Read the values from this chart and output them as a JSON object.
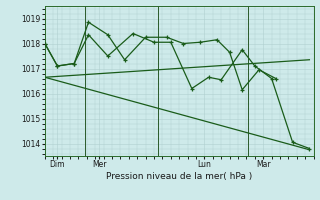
{
  "background_color": "#ceeaea",
  "grid_color": "#b0d0d0",
  "line_color": "#1a5c1a",
  "title": "Pression niveau de la mer( hPa )",
  "ylim": [
    1013.5,
    1019.5
  ],
  "yticks": [
    1014,
    1015,
    1016,
    1017,
    1018,
    1019
  ],
  "xlim": [
    0,
    32
  ],
  "day_labels": [
    "Dim",
    "Mer",
    "Lun",
    "Mar"
  ],
  "day_positions": [
    1.5,
    6.5,
    19.0,
    26.0
  ],
  "vline_positions": [
    4.8,
    13.5,
    24.2
  ],
  "series1_x": [
    0.0,
    1.5,
    3.5,
    5.2,
    7.5,
    9.5,
    12.0,
    14.5,
    16.5,
    18.5,
    20.5,
    22.0,
    23.5,
    25.5,
    27.5
  ],
  "series1_y": [
    1018.0,
    1017.1,
    1017.2,
    1018.85,
    1018.35,
    1017.35,
    1018.25,
    1018.25,
    1018.0,
    1018.05,
    1018.15,
    1017.65,
    1016.15,
    1016.95,
    1016.6
  ],
  "series1_marker": true,
  "series2_x": [
    0.0,
    1.5,
    3.5,
    5.2,
    7.5,
    10.5,
    13.0,
    15.0,
    17.5,
    19.5,
    21.0,
    23.5,
    25.0,
    27.0,
    29.5,
    31.5
  ],
  "series2_y": [
    1018.0,
    1017.1,
    1017.2,
    1018.35,
    1017.5,
    1018.4,
    1018.05,
    1018.05,
    1016.2,
    1016.65,
    1016.55,
    1017.75,
    1017.1,
    1016.6,
    1014.05,
    1013.8
  ],
  "series2_marker": true,
  "series3_x": [
    0.0,
    31.5
  ],
  "series3_y": [
    1016.65,
    1017.35
  ],
  "series3_marker": false,
  "series4_x": [
    0.0,
    31.5
  ],
  "series4_y": [
    1016.65,
    1013.75
  ],
  "series4_marker": false
}
